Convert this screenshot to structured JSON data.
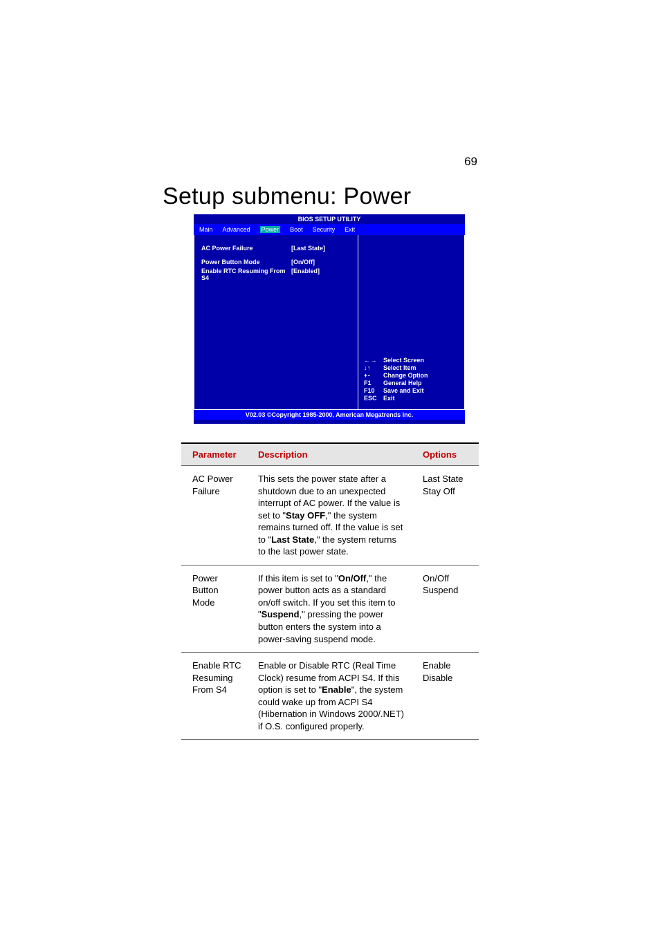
{
  "page_number": "69",
  "heading": "Setup submenu: Power",
  "bios": {
    "title": "BIOS SETUP UTILITY",
    "tabs": [
      "Main",
      "Advanced",
      "Power",
      "Boot",
      "Security",
      "Exit"
    ],
    "active_tab_index": 2,
    "items": [
      {
        "label": "AC Power Failure",
        "value": "[Last State]",
        "highlight": true
      },
      {
        "label": "Power Button Mode",
        "value": "[On/Off]",
        "highlight": false
      },
      {
        "label": "Enable RTC Resuming From S4",
        "value": "[Enabled]",
        "highlight": false
      }
    ],
    "help": [
      {
        "key": "← →",
        "text": "Select Screen"
      },
      {
        "key": "↓ ↑",
        "text": "Select Item"
      },
      {
        "key": "+ -",
        "text": "Change Option"
      },
      {
        "key": "F1",
        "text": "General Help"
      },
      {
        "key": "F10",
        "text": "Save and Exit"
      },
      {
        "key": "ESC",
        "text": "Exit"
      }
    ],
    "footer": "V02.03 ©Copyright 1985-2000, American Megatrends Inc.",
    "colors": {
      "bg": "#0000a8",
      "tab_bar": "#0000ff",
      "active_tab": "#00a8a8",
      "text": "#ffffff"
    }
  },
  "table": {
    "headers": [
      "Parameter",
      "Description",
      "Options"
    ],
    "rows": [
      {
        "param": "AC Power Failure",
        "desc_parts": [
          {
            "t": "This sets the power state after a shutdown due to an unexpected interrupt of AC power. If the value is set to \"",
            "b": false
          },
          {
            "t": "Stay OFF",
            "b": true
          },
          {
            "t": ",\" the system remains turned off.  If the value is set to \"",
            "b": false
          },
          {
            "t": "Last State",
            "b": true
          },
          {
            "t": ",\" the system returns to the last power state.",
            "b": false
          }
        ],
        "options": "Last State\nStay Off"
      },
      {
        "param": "Power Button Mode",
        "desc_parts": [
          {
            "t": "If this item is set to \"",
            "b": false
          },
          {
            "t": "On/Off",
            "b": true
          },
          {
            "t": ",\" the power button acts as a standard on/off switch.  If you set this item to \"",
            "b": false
          },
          {
            "t": "Suspend",
            "b": true
          },
          {
            "t": ",\" pressing the power button enters the system into a power-saving suspend mode.",
            "b": false
          }
        ],
        "options": "On/Off\nSuspend"
      },
      {
        "param": "Enable RTC Resuming From S4",
        "desc_parts": [
          {
            "t": "Enable or Disable RTC (Real Time Clock) resume from ACPI S4. If this option is set to \"",
            "b": false
          },
          {
            "t": "Enable",
            "b": true
          },
          {
            "t": "\", the system could wake up from ACPI S4 (Hibernation in Windows 2000/.NET) if O.S. configured properly.",
            "b": false
          }
        ],
        "options": "Enable\nDisable"
      }
    ]
  }
}
